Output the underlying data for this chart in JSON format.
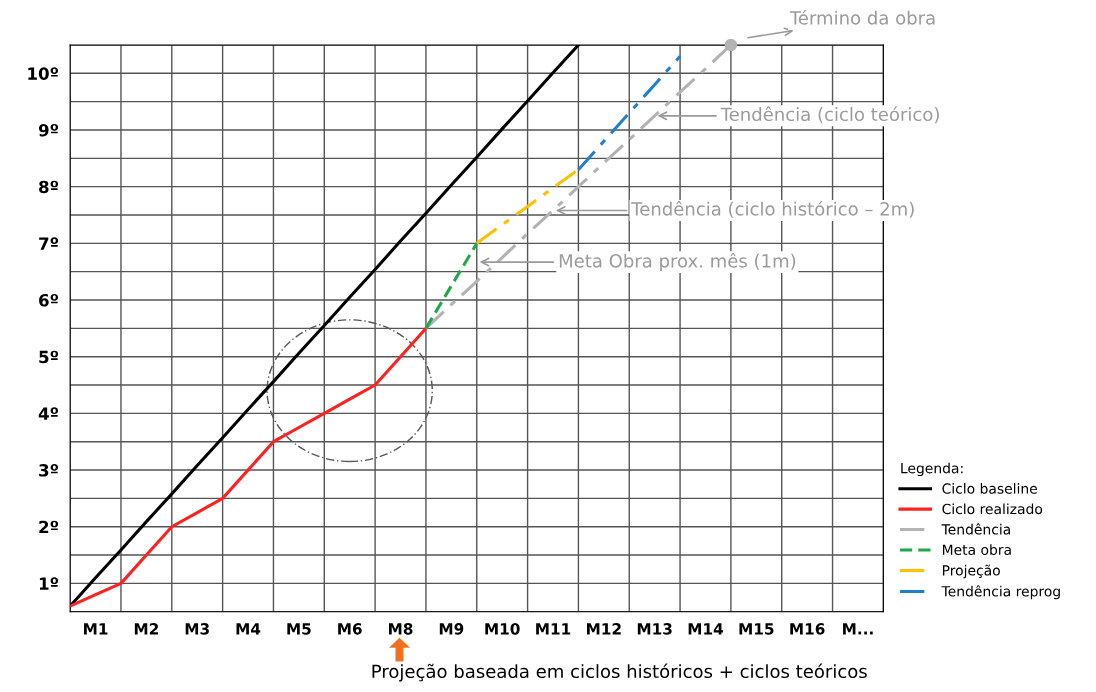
{
  "chart_data": {
    "type": "line",
    "categories": [
      null,
      "M1",
      null,
      "M2",
      null,
      "M3",
      null,
      "M4",
      null,
      "M5",
      null,
      "M6",
      null,
      "M8",
      null,
      "M9",
      null,
      "M10",
      null,
      "M11",
      null,
      "M12",
      null,
      "M13",
      null,
      "M14",
      null,
      "M15",
      null,
      "M16",
      null,
      "M...",
      null
    ],
    "ylim": [
      0,
      10
    ],
    "yticks": [
      {
        "value": 0.5,
        "label": "1º"
      },
      {
        "value": 1.5,
        "label": "2º"
      },
      {
        "value": 2.5,
        "label": "3º"
      },
      {
        "value": 3.5,
        "label": "4º"
      },
      {
        "value": 4.5,
        "label": "5º"
      },
      {
        "value": 5.5,
        "label": "6º"
      },
      {
        "value": 6.5,
        "label": "7º"
      },
      {
        "value": 7.5,
        "label": "8º"
      },
      {
        "value": 8.5,
        "label": "9º"
      },
      {
        "value": 9.5,
        "label": "10º"
      }
    ],
    "grid": true,
    "legend": "right",
    "legend_title": "Legenda:",
    "series": [
      {
        "name": "Ciclo baseline",
        "color": "#000000",
        "line_style": "solid",
        "values": [
          0.1,
          0.6,
          1.09,
          1.59,
          2.08,
          2.58,
          3.07,
          3.57,
          4.06,
          4.56,
          5.05,
          5.55,
          6.04,
          6.54,
          7.03,
          7.53,
          8.02,
          8.52,
          9.01,
          9.51,
          10.0,
          null,
          null,
          null,
          null,
          null,
          null,
          null,
          null,
          null,
          null,
          null,
          null
        ]
      },
      {
        "name": "Ciclo realizado",
        "color": "#ff2020",
        "line_style": "solid",
        "values": [
          0.1,
          0.3,
          0.5,
          1.0,
          1.5,
          1.75,
          2.0,
          2.5,
          3.0,
          3.25,
          3.5,
          3.75,
          4.0,
          4.5,
          5.0,
          null,
          null,
          null,
          null,
          null,
          null,
          null,
          null,
          null,
          null,
          null,
          null,
          null,
          null,
          null,
          null,
          null,
          null
        ]
      },
      {
        "name": "Tendência",
        "color": "#b3b3b3",
        "line_style": "dashdot",
        "values": [
          null,
          null,
          null,
          null,
          null,
          null,
          null,
          null,
          null,
          null,
          null,
          null,
          null,
          null,
          5.0,
          5.42,
          5.83,
          6.25,
          6.67,
          7.08,
          7.5,
          7.92,
          8.33,
          8.75,
          9.17,
          9.58,
          10.0,
          null,
          null,
          null,
          null,
          null,
          null
        ]
      },
      {
        "name": "Meta obra",
        "color": "#1fa84a",
        "line_style": "dashed",
        "values": [
          null,
          null,
          null,
          null,
          null,
          null,
          null,
          null,
          null,
          null,
          null,
          null,
          null,
          null,
          5.0,
          5.75,
          6.5,
          null,
          null,
          null,
          null,
          null,
          null,
          null,
          null,
          null,
          null,
          null,
          null,
          null,
          null,
          null,
          null
        ]
      },
      {
        "name": "Projeção",
        "color": "#ffc000",
        "line_style": "dashdot",
        "values": [
          null,
          null,
          null,
          null,
          null,
          null,
          null,
          null,
          null,
          null,
          null,
          null,
          null,
          null,
          null,
          null,
          6.5,
          6.83,
          7.15,
          7.48,
          7.8,
          null,
          null,
          null,
          null,
          null,
          null,
          null,
          null,
          null,
          null,
          null,
          null
        ]
      },
      {
        "name": "Tendência reprog",
        "color": "#2080d0",
        "line_style": "dashdot",
        "values": [
          null,
          null,
          null,
          null,
          null,
          null,
          null,
          null,
          null,
          null,
          null,
          null,
          null,
          null,
          null,
          null,
          null,
          null,
          null,
          null,
          7.8,
          8.3,
          8.8,
          9.3,
          9.8,
          null,
          null,
          null,
          null,
          null,
          null,
          null,
          null
        ]
      },
      {
        "type": "scatter",
        "color": "#b3b3b3",
        "marker": "circle",
        "values": [
          null,
          null,
          null,
          null,
          null,
          null,
          null,
          null,
          null,
          null,
          null,
          null,
          null,
          null,
          null,
          null,
          null,
          null,
          null,
          null,
          null,
          null,
          null,
          null,
          null,
          null,
          10.0,
          null,
          null,
          null,
          null,
          null,
          null
        ]
      }
    ],
    "annotations": [
      "Término da obra",
      {
        "text": "Tendência (ciclo teórico)",
        "x": "M13",
        "y": 8.75
      },
      {
        "text": "Tendência (ciclo histórico – 2m)",
        "x": "M11",
        "y": 7.08
      },
      "Meta Obra prox. mês (1m)",
      "Projeção baseada em ciclos históricos + ciclos teóricos"
    ]
  }
}
